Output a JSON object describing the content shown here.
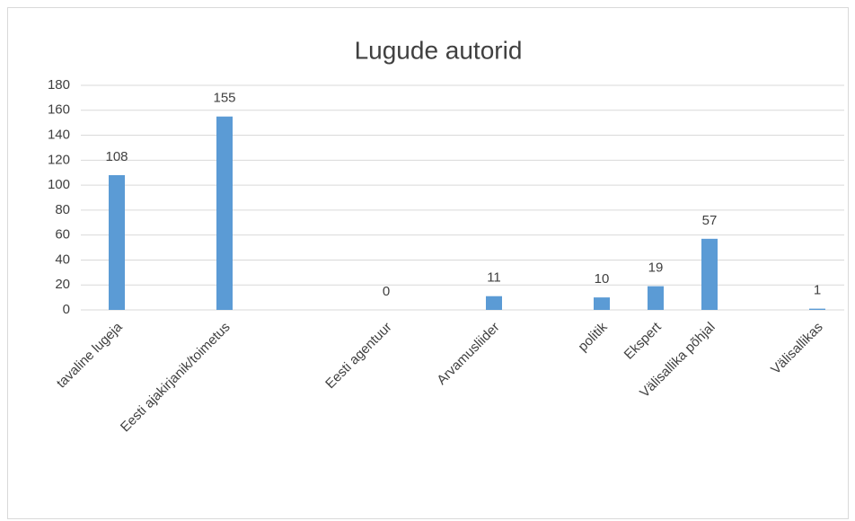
{
  "chart_data": {
    "type": "bar",
    "title": "Lugude autorid",
    "categories": [
      "tavaline lugeja",
      null,
      "Eesti ajakirjanik/toimetus",
      null,
      null,
      "Eesti agentuur",
      null,
      "Arvamusliider",
      null,
      "politik",
      "Ekspert",
      "Välisallika põhjal",
      null,
      "Välisallikas"
    ],
    "values": [
      108,
      null,
      155,
      null,
      null,
      0,
      null,
      11,
      null,
      10,
      19,
      57,
      null,
      1
    ],
    "color": "#5b9bd5",
    "ylim": [
      0,
      180
    ],
    "yticks": [
      0,
      20,
      40,
      60,
      80,
      100,
      120,
      140,
      160,
      180
    ],
    "grid": true
  }
}
